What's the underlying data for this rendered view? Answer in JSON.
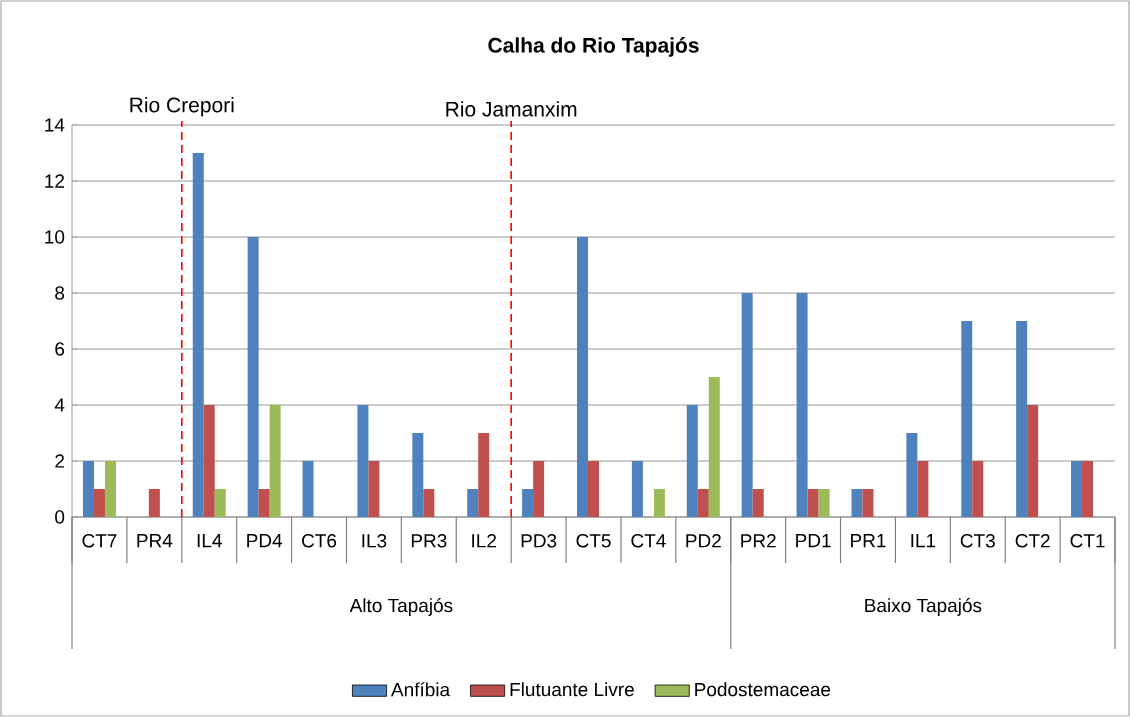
{
  "chart_data": {
    "type": "bar",
    "title": "Calha do Rio Tapajós",
    "categories": [
      "CT7",
      "PR4",
      "IL4",
      "PD4",
      "CT6",
      "IL3",
      "PR3",
      "IL2",
      "PD3",
      "CT5",
      "CT4",
      "PD2",
      "PR2",
      "PD1",
      "PR1",
      "IL1",
      "CT3",
      "CT2",
      "CT1"
    ],
    "series": [
      {
        "name": "Anfíbia",
        "color": "#4f81bd",
        "values": [
          2,
          0,
          13,
          10,
          2,
          4,
          3,
          1,
          1,
          10,
          2,
          4,
          8,
          8,
          1,
          3,
          7,
          7,
          2
        ]
      },
      {
        "name": "Flutuante Livre",
        "color": "#c0504d",
        "values": [
          1,
          1,
          4,
          1,
          0,
          2,
          1,
          3,
          2,
          2,
          0,
          1,
          1,
          1,
          1,
          2,
          2,
          4,
          2
        ]
      },
      {
        "name": "Podostemaceae",
        "color": "#9bbb59",
        "values": [
          2,
          0,
          1,
          4,
          0,
          0,
          0,
          0,
          0,
          0,
          1,
          5,
          0,
          1,
          0,
          0,
          0,
          0,
          0
        ]
      }
    ],
    "ylim": [
      0,
      14
    ],
    "yticks": [
      0,
      2,
      4,
      6,
      8,
      10,
      12,
      14
    ],
    "grid": "y",
    "legend": "bottom",
    "annotations": [
      "Rio Crepori",
      "Rio Jamanxim",
      "Alto Tapajós",
      "Baixo Tapajós"
    ]
  }
}
